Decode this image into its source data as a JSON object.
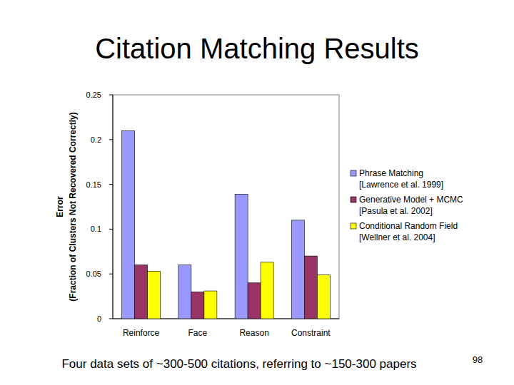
{
  "chart_data": {
    "type": "bar",
    "title": "Citation Matching Results",
    "y_label": [
      "Error",
      "(Fraction of Clusters Not Recovered Correctly)"
    ],
    "categories": [
      "Reinforce",
      "Face",
      "Reason",
      "Constraint"
    ],
    "series": [
      {
        "name": "Phrase Matching\n[Lawrence et al. 1999]",
        "color": "#9999ff",
        "values": [
          0.21,
          0.06,
          0.139,
          0.11
        ]
      },
      {
        "name": "Generative Model + MCMC\n[Pasula et al. 2002]",
        "color": "#993366",
        "values": [
          0.06,
          0.03,
          0.04,
          0.07
        ]
      },
      {
        "name": "Conditional Random Field\n[Wellner et al. 2004]",
        "color": "#ffff00",
        "values": [
          0.053,
          0.031,
          0.063,
          0.049
        ]
      }
    ],
    "ylim": [
      0,
      0.25
    ],
    "yticks": [
      0,
      0.05,
      0.1,
      0.15,
      0.2,
      0.25
    ],
    "grid": false,
    "legend": "right"
  },
  "slide": {
    "footer": "Four data sets of ~300-500 citations, referring to ~150-300 papers",
    "page_number": 98
  }
}
